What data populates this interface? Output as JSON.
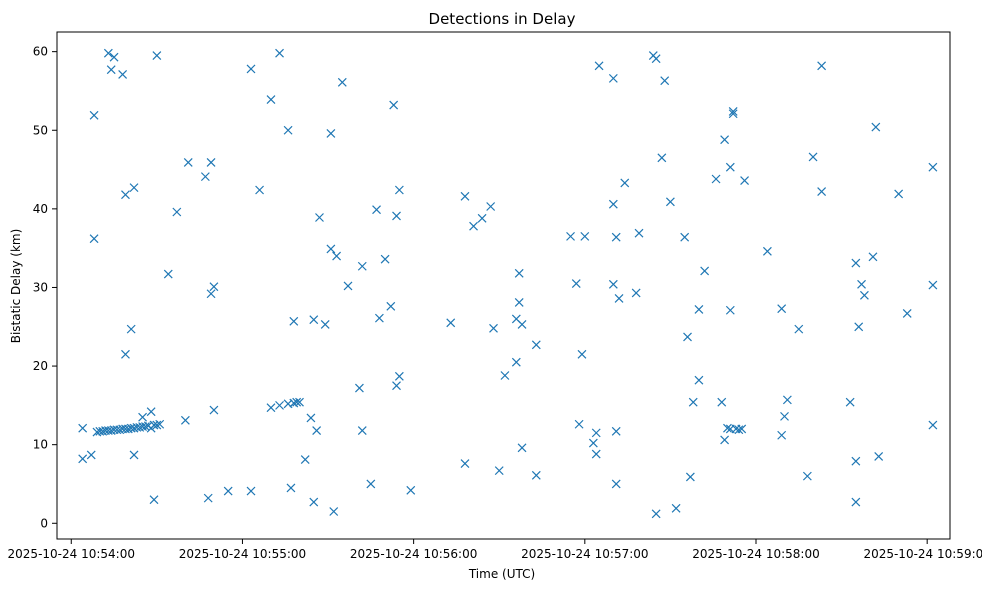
{
  "chart_data": {
    "type": "scatter",
    "title": "Detections in Delay",
    "xlabel": "Time (UTC)",
    "ylabel": "Bistatic Delay (km)",
    "marker": "x",
    "color": "#1f77b4",
    "grid": false,
    "legend": "none",
    "xlim": [
      "2025-10-24 10:53:55",
      "2025-10-24 10:59:08"
    ],
    "ylim": [
      -2,
      62.5
    ],
    "x_ticks": [
      "2025-10-24 10:54:00",
      "2025-10-24 10:55:00",
      "2025-10-24 10:56:00",
      "2025-10-24 10:57:00",
      "2025-10-24 10:58:00",
      "2025-10-24 10:59:00"
    ],
    "y_ticks": [
      0,
      10,
      20,
      30,
      40,
      50,
      60
    ],
    "points": [
      [
        "10:54:04",
        8.2
      ],
      [
        "10:54:04",
        12.1
      ],
      [
        "10:54:07",
        8.7
      ],
      [
        "10:54:08",
        36.2
      ],
      [
        "10:54:08",
        51.9
      ],
      [
        "10:54:09",
        11.6
      ],
      [
        "10:54:10",
        11.7
      ],
      [
        "10:54:11",
        11.7
      ],
      [
        "10:54:12",
        11.8
      ],
      [
        "10:54:13",
        11.8
      ],
      [
        "10:54:14",
        11.8
      ],
      [
        "10:54:15",
        11.9
      ],
      [
        "10:54:16",
        11.9
      ],
      [
        "10:54:17",
        11.9
      ],
      [
        "10:54:18",
        12.0
      ],
      [
        "10:54:19",
        12.0
      ],
      [
        "10:54:20",
        12.0
      ],
      [
        "10:54:21",
        12.1
      ],
      [
        "10:54:22",
        12.1
      ],
      [
        "10:54:23",
        12.2
      ],
      [
        "10:54:24",
        12.2
      ],
      [
        "10:54:25",
        12.3
      ],
      [
        "10:54:26",
        12.3
      ],
      [
        "10:54:27",
        12.4
      ],
      [
        "10:54:28",
        12.1
      ],
      [
        "10:54:29",
        12.5
      ],
      [
        "10:54:30",
        12.5
      ],
      [
        "10:54:31",
        12.6
      ],
      [
        "10:54:13",
        59.8
      ],
      [
        "10:54:14",
        57.7
      ],
      [
        "10:54:15",
        59.3
      ],
      [
        "10:54:18",
        57.1
      ],
      [
        "10:54:19",
        41.8
      ],
      [
        "10:54:19",
        21.5
      ],
      [
        "10:54:21",
        24.7
      ],
      [
        "10:54:22",
        42.7
      ],
      [
        "10:54:22",
        8.7
      ],
      [
        "10:54:25",
        13.5
      ],
      [
        "10:54:28",
        14.2
      ],
      [
        "10:54:29",
        3.0
      ],
      [
        "10:54:30",
        59.5
      ],
      [
        "10:54:34",
        31.7
      ],
      [
        "10:54:37",
        39.6
      ],
      [
        "10:54:40",
        13.1
      ],
      [
        "10:54:41",
        45.9
      ],
      [
        "10:54:47",
        44.1
      ],
      [
        "10:54:48",
        3.2
      ],
      [
        "10:54:49",
        29.2
      ],
      [
        "10:54:49",
        45.9
      ],
      [
        "10:54:50",
        14.4
      ],
      [
        "10:54:50",
        30.1
      ],
      [
        "10:54:55",
        4.1
      ],
      [
        "10:55:03",
        4.1
      ],
      [
        "10:55:03",
        57.8
      ],
      [
        "10:55:06",
        42.4
      ],
      [
        "10:55:10",
        14.7
      ],
      [
        "10:55:10",
        53.9
      ],
      [
        "10:55:13",
        15.0
      ],
      [
        "10:55:13",
        59.8
      ],
      [
        "10:55:16",
        15.2
      ],
      [
        "10:55:16",
        50.0
      ],
      [
        "10:55:17",
        4.5
      ],
      [
        "10:55:18",
        25.7
      ],
      [
        "10:55:18",
        15.3
      ],
      [
        "10:55:19",
        15.4
      ],
      [
        "10:55:20",
        15.4
      ],
      [
        "10:55:22",
        8.1
      ],
      [
        "10:55:24",
        13.4
      ],
      [
        "10:55:25",
        2.7
      ],
      [
        "10:55:25",
        25.9
      ],
      [
        "10:55:26",
        11.8
      ],
      [
        "10:55:27",
        38.9
      ],
      [
        "10:55:29",
        25.3
      ],
      [
        "10:55:31",
        49.6
      ],
      [
        "10:55:31",
        34.9
      ],
      [
        "10:55:32",
        1.5
      ],
      [
        "10:55:33",
        34.0
      ],
      [
        "10:55:35",
        56.1
      ],
      [
        "10:55:37",
        30.2
      ],
      [
        "10:55:41",
        17.2
      ],
      [
        "10:55:42",
        11.8
      ],
      [
        "10:55:42",
        32.7
      ],
      [
        "10:55:45",
        5.0
      ],
      [
        "10:55:47",
        39.9
      ],
      [
        "10:55:48",
        26.1
      ],
      [
        "10:55:50",
        33.6
      ],
      [
        "10:55:52",
        27.6
      ],
      [
        "10:55:53",
        53.2
      ],
      [
        "10:55:54",
        39.1
      ],
      [
        "10:55:54",
        17.5
      ],
      [
        "10:55:55",
        18.7
      ],
      [
        "10:55:55",
        42.4
      ],
      [
        "10:55:59",
        4.2
      ],
      [
        "10:56:13",
        25.5
      ],
      [
        "10:56:18",
        7.6
      ],
      [
        "10:56:18",
        41.6
      ],
      [
        "10:56:21",
        37.8
      ],
      [
        "10:56:24",
        38.8
      ],
      [
        "10:56:27",
        40.3
      ],
      [
        "10:56:28",
        24.8
      ],
      [
        "10:56:30",
        6.7
      ],
      [
        "10:56:32",
        18.8
      ],
      [
        "10:56:36",
        26.0
      ],
      [
        "10:56:36",
        20.5
      ],
      [
        "10:56:37",
        31.8
      ],
      [
        "10:56:37",
        28.1
      ],
      [
        "10:56:38",
        25.3
      ],
      [
        "10:56:38",
        9.6
      ],
      [
        "10:56:43",
        22.7
      ],
      [
        "10:56:43",
        6.1
      ],
      [
        "10:56:55",
        36.5
      ],
      [
        "10:56:57",
        30.5
      ],
      [
        "10:56:58",
        12.6
      ],
      [
        "10:56:59",
        21.5
      ],
      [
        "10:57:00",
        36.5
      ],
      [
        "10:57:03",
        10.2
      ],
      [
        "10:57:04",
        8.8
      ],
      [
        "10:57:04",
        11.5
      ],
      [
        "10:57:05",
        58.2
      ],
      [
        "10:57:10",
        56.6
      ],
      [
        "10:57:10",
        40.6
      ],
      [
        "10:57:10",
        30.4
      ],
      [
        "10:57:11",
        36.4
      ],
      [
        "10:57:11",
        11.7
      ],
      [
        "10:57:11",
        5.0
      ],
      [
        "10:57:12",
        28.6
      ],
      [
        "10:57:14",
        43.3
      ],
      [
        "10:57:18",
        29.3
      ],
      [
        "10:57:19",
        36.9
      ],
      [
        "10:57:24",
        59.5
      ],
      [
        "10:57:25",
        59.1
      ],
      [
        "10:57:25",
        1.2
      ],
      [
        "10:57:27",
        46.5
      ],
      [
        "10:57:28",
        56.3
      ],
      [
        "10:57:30",
        40.9
      ],
      [
        "10:57:32",
        1.9
      ],
      [
        "10:57:35",
        36.4
      ],
      [
        "10:57:36",
        23.7
      ],
      [
        "10:57:37",
        5.9
      ],
      [
        "10:57:38",
        15.4
      ],
      [
        "10:57:40",
        18.2
      ],
      [
        "10:57:40",
        27.2
      ],
      [
        "10:57:42",
        32.1
      ],
      [
        "10:57:46",
        43.8
      ],
      [
        "10:57:48",
        15.4
      ],
      [
        "10:57:49",
        10.6
      ],
      [
        "10:57:49",
        48.8
      ],
      [
        "10:57:50",
        12.1
      ],
      [
        "10:57:51",
        45.3
      ],
      [
        "10:57:51",
        12.0
      ],
      [
        "10:57:51",
        27.1
      ],
      [
        "10:57:52",
        52.1
      ],
      [
        "10:57:52",
        52.4
      ],
      [
        "10:57:53",
        12.0
      ],
      [
        "10:57:54",
        11.9
      ],
      [
        "10:57:55",
        12.0
      ],
      [
        "10:57:56",
        43.6
      ],
      [
        "10:58:04",
        34.6
      ],
      [
        "10:58:09",
        27.3
      ],
      [
        "10:58:09",
        11.2
      ],
      [
        "10:58:10",
        13.6
      ],
      [
        "10:58:11",
        15.7
      ],
      [
        "10:58:15",
        24.7
      ],
      [
        "10:58:18",
        6.0
      ],
      [
        "10:58:20",
        46.6
      ],
      [
        "10:58:23",
        42.2
      ],
      [
        "10:58:23",
        58.2
      ],
      [
        "10:58:33",
        15.4
      ],
      [
        "10:58:35",
        33.1
      ],
      [
        "10:58:35",
        7.9
      ],
      [
        "10:58:35",
        2.7
      ],
      [
        "10:58:36",
        25.0
      ],
      [
        "10:58:37",
        30.4
      ],
      [
        "10:58:38",
        29.0
      ],
      [
        "10:58:41",
        33.9
      ],
      [
        "10:58:42",
        50.4
      ],
      [
        "10:58:43",
        8.5
      ],
      [
        "10:58:50",
        41.9
      ],
      [
        "10:58:53",
        26.7
      ],
      [
        "10:59:02",
        45.3
      ],
      [
        "10:59:02",
        30.3
      ],
      [
        "10:59:02",
        12.5
      ]
    ]
  }
}
